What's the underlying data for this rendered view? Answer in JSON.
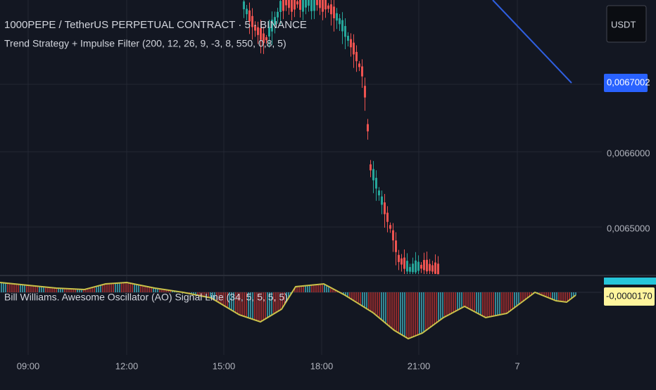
{
  "header": {
    "symbol_line": "1000PEPE / TetherUS PERPETUAL CONTRACT · 5 · BINANCE",
    "indicator_line": "Trend Strategy + Impulse Filter (200, 12, 26, 9, -3, 8, 550, 0,8, 5)"
  },
  "price_axis": {
    "currency": "USDT",
    "last_price": "0,0067002",
    "labels": [
      "0,0066000",
      "0,0065000"
    ]
  },
  "oscillator": {
    "label": "Bill Williams. Awesome Oscillator (AO) Signal Line (34, 5, 5, 5, 5)",
    "value": "-0,0000170"
  },
  "time_axis": {
    "labels": [
      "09:00",
      "12:00",
      "15:00",
      "18:00",
      "21:00",
      "7"
    ]
  }
}
